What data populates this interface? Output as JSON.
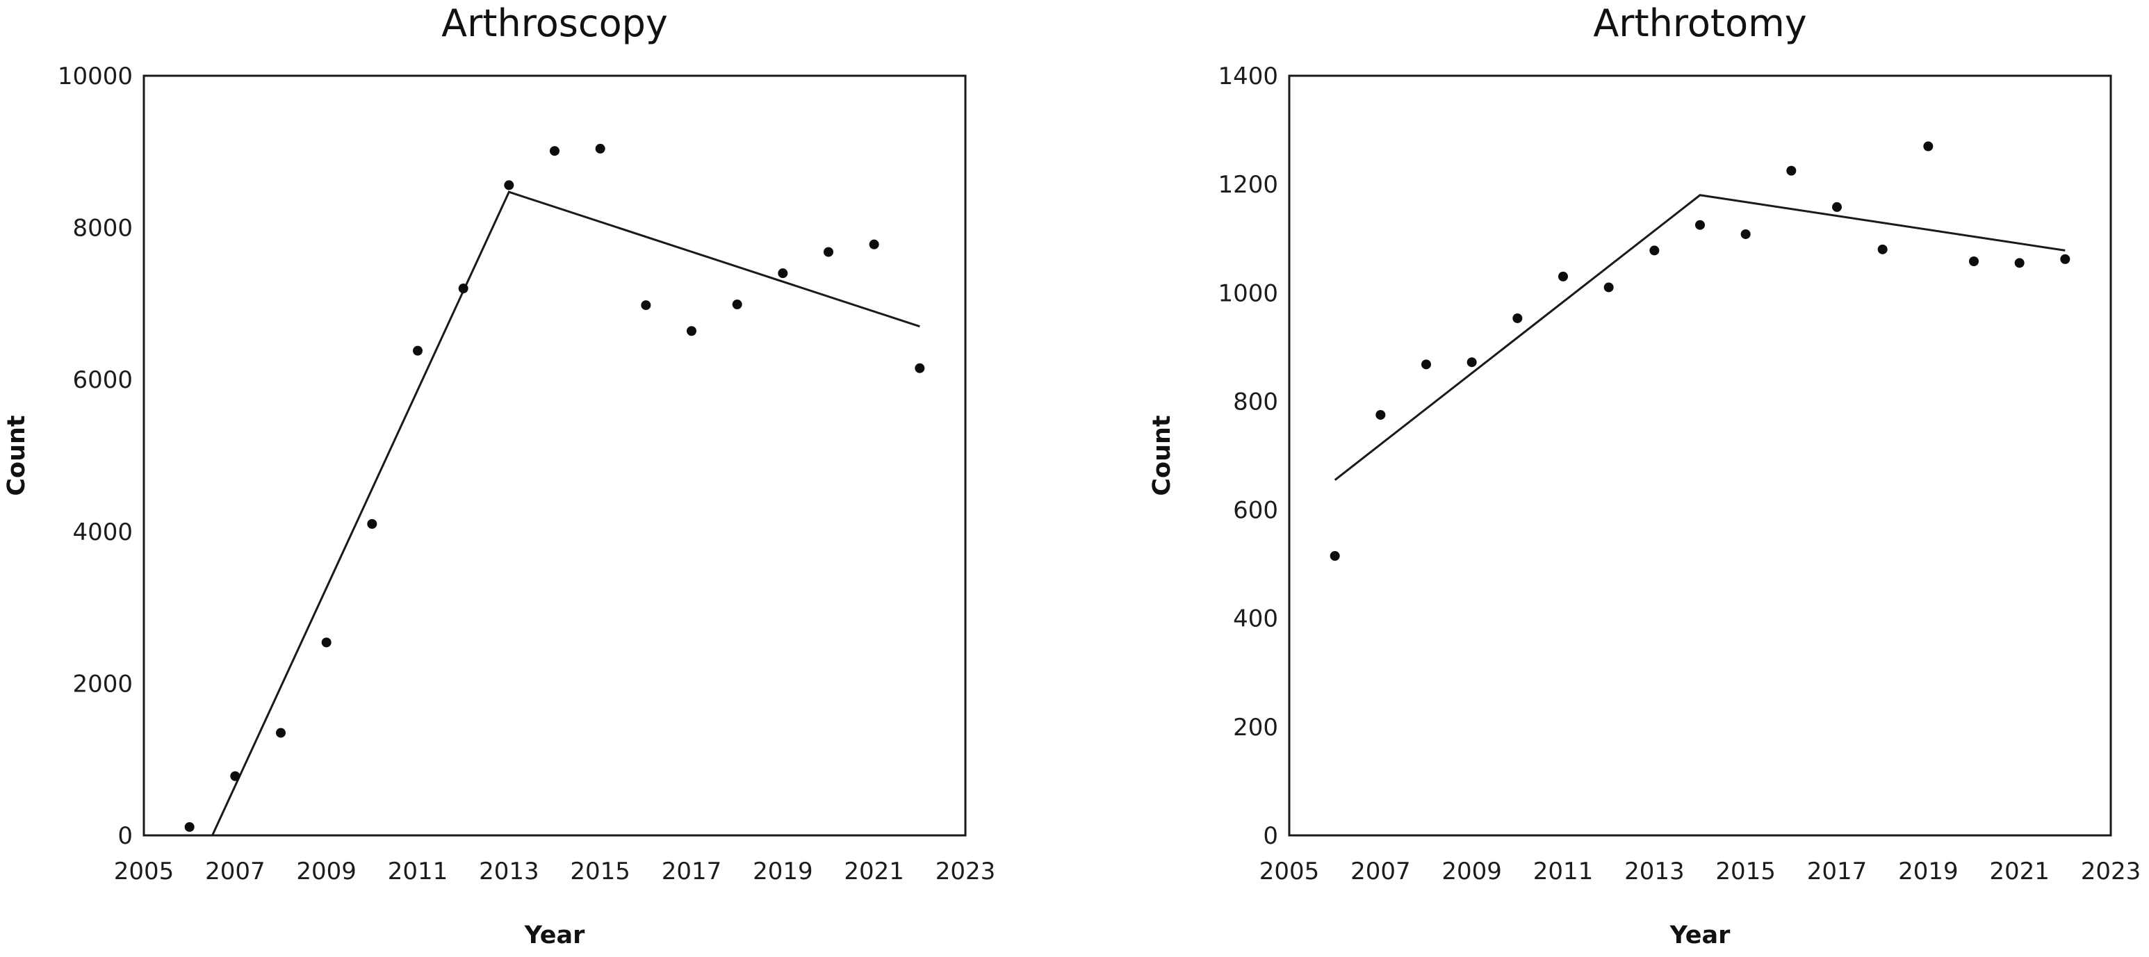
{
  "figure": {
    "background": "#ffffff",
    "text_color": "#1c1c1c",
    "point_color": "#0d0d0d",
    "line_color": "#1a1a1a"
  },
  "chart_data": [
    {
      "type": "scatter",
      "title": "Arthroscopy",
      "xlabel": "Year",
      "ylabel": "Count",
      "xlim": [
        2005,
        2023
      ],
      "ylim": [
        0,
        10000
      ],
      "x_ticks": [
        2005,
        2007,
        2009,
        2011,
        2013,
        2015,
        2017,
        2019,
        2021,
        2023
      ],
      "y_ticks": [
        0,
        2000,
        4000,
        6000,
        8000,
        10000
      ],
      "grid": false,
      "legend": "none",
      "x": [
        2006,
        2007,
        2008,
        2009,
        2010,
        2011,
        2012,
        2013,
        2014,
        2015,
        2016,
        2017,
        2018,
        2019,
        2020,
        2021,
        2022
      ],
      "values": [
        110,
        780,
        1350,
        2540,
        4100,
        6380,
        7200,
        8560,
        9010,
        9040,
        6980,
        6640,
        6990,
        7400,
        7680,
        7780,
        6150
      ],
      "trend_line": [
        [
          2006.5,
          0
        ],
        [
          2013,
          8470
        ],
        [
          2022,
          6700
        ]
      ]
    },
    {
      "type": "scatter",
      "title": "Arthrotomy",
      "xlabel": "Year",
      "ylabel": "Count",
      "xlim": [
        2005,
        2023
      ],
      "ylim": [
        0,
        1400
      ],
      "x_ticks": [
        2005,
        2007,
        2009,
        2011,
        2013,
        2015,
        2017,
        2019,
        2021,
        2023
      ],
      "y_ticks": [
        0,
        200,
        400,
        600,
        800,
        1000,
        1200,
        1400
      ],
      "grid": false,
      "legend": "none",
      "x": [
        2006,
        2007,
        2008,
        2009,
        2010,
        2011,
        2012,
        2013,
        2014,
        2015,
        2016,
        2017,
        2018,
        2019,
        2020,
        2021,
        2022
      ],
      "values": [
        515,
        775,
        868,
        872,
        953,
        1030,
        1010,
        1078,
        1125,
        1108,
        1225,
        1158,
        1080,
        1270,
        1058,
        1055,
        1062
      ],
      "trend_line": [
        [
          2006,
          655
        ],
        [
          2014,
          1180
        ],
        [
          2022,
          1078
        ]
      ]
    }
  ]
}
